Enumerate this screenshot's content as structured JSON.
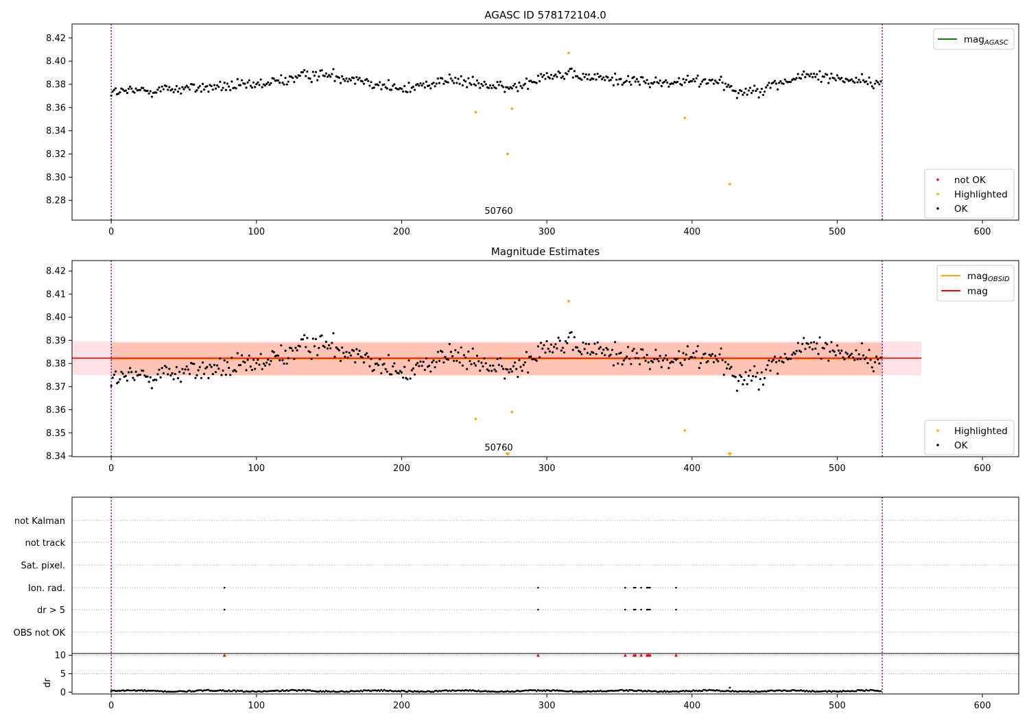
{
  "colors": {
    "ok": "#000000",
    "highlighted": "#ffa500",
    "not_ok": "#ff0000",
    "mag_agasc": "#008000",
    "mag_obsid": "#ffa500",
    "mag": "#ff0000",
    "boundary": "#800080",
    "band_outer": "#ffb6c1",
    "band_inner": "#ffa07a",
    "grid": "#b0b0b0"
  },
  "chart_data": [
    {
      "type": "scatter",
      "title": "AGASC ID 578172104.0",
      "xlim": [
        -27,
        625
      ],
      "ylim": [
        8.263,
        8.432
      ],
      "xticks": [
        0,
        100,
        200,
        300,
        400,
        500,
        600
      ],
      "yticks": [
        8.28,
        8.3,
        8.32,
        8.34,
        8.36,
        8.38,
        8.4,
        8.42
      ],
      "ytick_labels": [
        "8.28",
        "8.30",
        "8.32",
        "8.34",
        "8.36",
        "8.38",
        "8.40",
        "8.42"
      ],
      "obs_boundaries": [
        0,
        531
      ],
      "obs_labels": [
        {
          "x": 265,
          "text": "50760"
        }
      ],
      "ok_series": {
        "name": "OK",
        "trend": [
          [
            0,
            8.373
          ],
          [
            40,
            8.376
          ],
          [
            100,
            8.379
          ],
          [
            140,
            8.389
          ],
          [
            170,
            8.385
          ],
          [
            200,
            8.375
          ],
          [
            230,
            8.384
          ],
          [
            260,
            8.379
          ],
          [
            275,
            8.376
          ],
          [
            300,
            8.389
          ],
          [
            340,
            8.385
          ],
          [
            380,
            8.381
          ],
          [
            420,
            8.384
          ],
          [
            430,
            8.373
          ],
          [
            450,
            8.377
          ],
          [
            480,
            8.388
          ],
          [
            520,
            8.383
          ],
          [
            531,
            8.378
          ]
        ],
        "scatter": 0.0085,
        "n": 531
      },
      "highlighted": {
        "name": "Highlighted",
        "points": [
          [
            251,
            8.356
          ],
          [
            273,
            8.32
          ],
          [
            276,
            8.359
          ],
          [
            315,
            8.407
          ],
          [
            395,
            8.351
          ],
          [
            426,
            8.294
          ]
        ]
      },
      "not_ok": {
        "name": "not OK",
        "points": []
      },
      "line_legend": [
        {
          "name": "mag",
          "sub": "AGASC",
          "color": "#008000"
        }
      ],
      "marker_legend": [
        "not OK",
        "Highlighted",
        "OK"
      ],
      "legend_positions": [
        "top-right",
        "bottom-right"
      ]
    },
    {
      "type": "scatter",
      "title": "Magnitude Estimates",
      "xlim": [
        -27,
        625
      ],
      "ylim": [
        8.3397,
        8.4245
      ],
      "xticks": [
        0,
        100,
        200,
        300,
        400,
        500,
        600
      ],
      "yticks": [
        8.34,
        8.35,
        8.36,
        8.37,
        8.38,
        8.39,
        8.4,
        8.41,
        8.42
      ],
      "ytick_labels": [
        "8.34",
        "8.35",
        "8.36",
        "8.37",
        "8.38",
        "8.39",
        "8.40",
        "8.41",
        "8.42"
      ],
      "obs_boundaries": [
        0,
        531
      ],
      "obs_labels": [
        {
          "x": 265,
          "text": "50760"
        }
      ],
      "mag": 8.3823,
      "mag_band": [
        8.375,
        8.3895
      ],
      "mag_band_x": [
        -27,
        558
      ],
      "mag_obsid": 8.382,
      "mag_obsid_band": [
        8.3748,
        8.389
      ],
      "mag_obsid_x": [
        0,
        531
      ],
      "highlighted": {
        "name": "Highlighted",
        "points": [
          [
            251,
            8.356
          ],
          [
            276,
            8.359
          ],
          [
            315,
            8.407
          ],
          [
            395,
            8.351
          ]
        ]
      },
      "offscale_markers": [
        273,
        426
      ],
      "line_legend": [
        {
          "name": "mag",
          "sub": "OBSID",
          "color": "#ffa500"
        },
        {
          "name": "mag",
          "sub": "",
          "color": "#ff0000"
        }
      ],
      "marker_legend": [
        "Highlighted",
        "OK"
      ],
      "legend_positions": [
        "top-right",
        "bottom-right"
      ]
    },
    {
      "type": "scatter",
      "title": "",
      "xlim": [
        -27,
        625
      ],
      "xticks": [
        0,
        100,
        200,
        300,
        400,
        500,
        600
      ],
      "flag_rows": [
        "not Kalman",
        "not track",
        "Sat. pixel.",
        "Ion. rad.",
        "dr > 5",
        "OBS not OK"
      ],
      "flags": {
        "Ion. rad.": [
          78,
          294,
          354,
          360,
          361,
          365,
          369,
          370,
          371,
          389
        ],
        "dr > 5": [
          78,
          294,
          354,
          360,
          361,
          365,
          369,
          370,
          371,
          389
        ]
      },
      "dr": {
        "ylabel": "dr",
        "ylim": [
          -0.5,
          10.5
        ],
        "yticks": [
          0,
          5,
          10
        ],
        "ytick_labels": [
          "0",
          "5",
          "10"
        ],
        "baseline": 0.3,
        "noise": 0.35,
        "n": 531,
        "spikes": [
          [
            426,
            1.2
          ]
        ],
        "clipped": [
          78,
          294,
          354,
          360,
          361,
          365,
          369,
          370,
          371,
          389
        ]
      }
    }
  ]
}
